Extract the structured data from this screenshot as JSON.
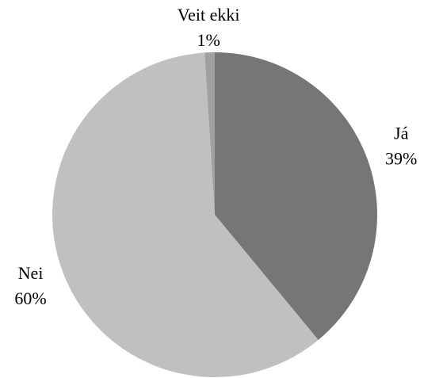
{
  "chart_data": {
    "type": "pie",
    "categories": [
      "Já",
      "Nei",
      "Veit ekki"
    ],
    "values": [
      39,
      60,
      1
    ],
    "value_labels": [
      "39%",
      "60%",
      "1%"
    ],
    "colors": [
      "#767676",
      "#c0c0c0",
      "#a0a0a0"
    ]
  }
}
